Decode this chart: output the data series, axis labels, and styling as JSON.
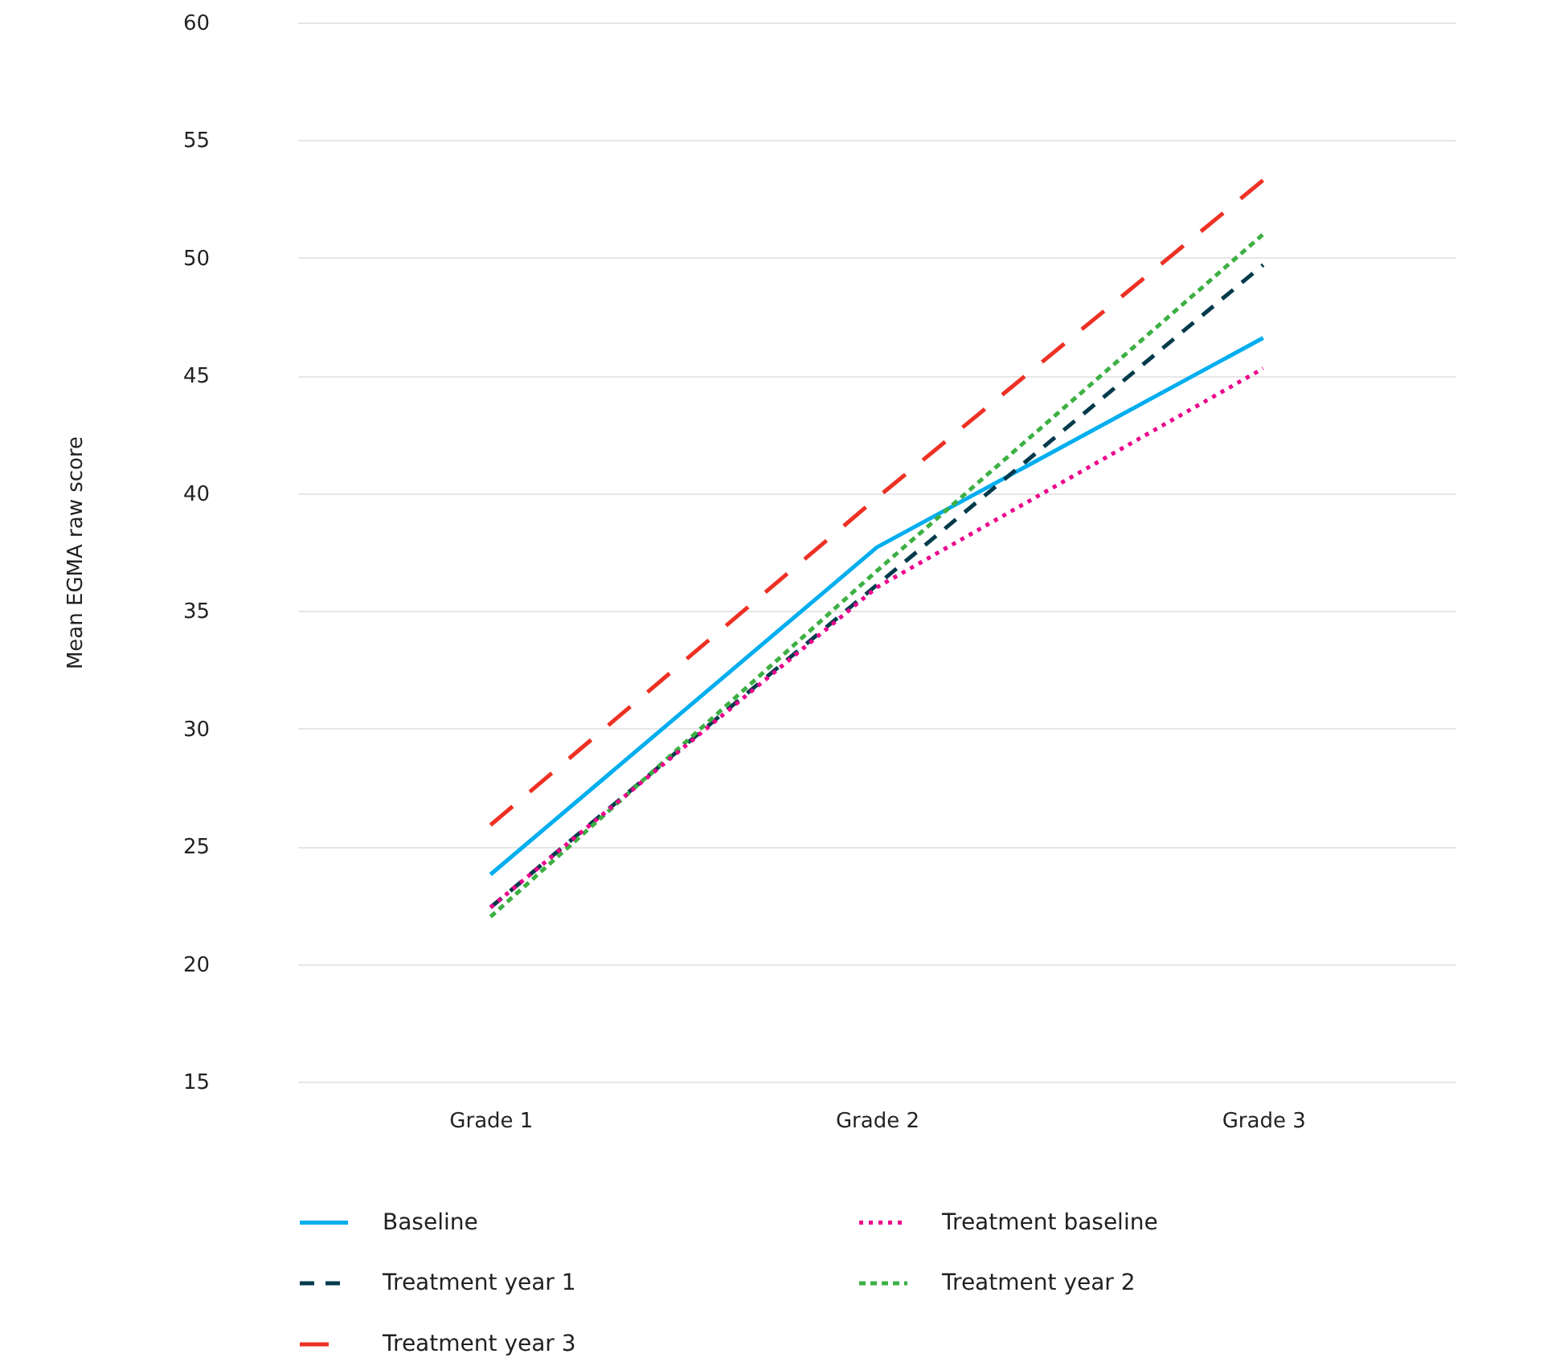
{
  "chart_data": {
    "type": "line",
    "ylabel": "Mean EGMA raw score",
    "categories": [
      "Grade 1",
      "Grade 2",
      "Grade 3"
    ],
    "series": [
      {
        "name": "Baseline",
        "color": "#00aeef",
        "line_style": "solid",
        "values": [
          23.8,
          37.7,
          46.6
        ]
      },
      {
        "name": "Treatment baseline",
        "color": "#ec008c",
        "line_style": "dotted",
        "values": [
          22.4,
          36.0,
          45.3
        ]
      },
      {
        "name": "Treatment year 1",
        "color": "#003b4c",
        "line_style": "dashed",
        "values": [
          22.4,
          36.1,
          49.7
        ]
      },
      {
        "name": "Treatment year 2",
        "color": "#3cb043",
        "line_style": "dashed",
        "values": [
          22.0,
          36.7,
          51.0
        ]
      },
      {
        "name": "Treatment year 3",
        "color": "#ee3124",
        "line_style": "dashed",
        "values": [
          25.9,
          39.8,
          53.3
        ]
      }
    ],
    "ylim": [
      15,
      60
    ],
    "yticks": [
      15,
      20,
      25,
      30,
      35,
      40,
      45,
      50,
      55,
      60
    ],
    "grid": "y",
    "legend": "bottom",
    "marker": "none"
  }
}
